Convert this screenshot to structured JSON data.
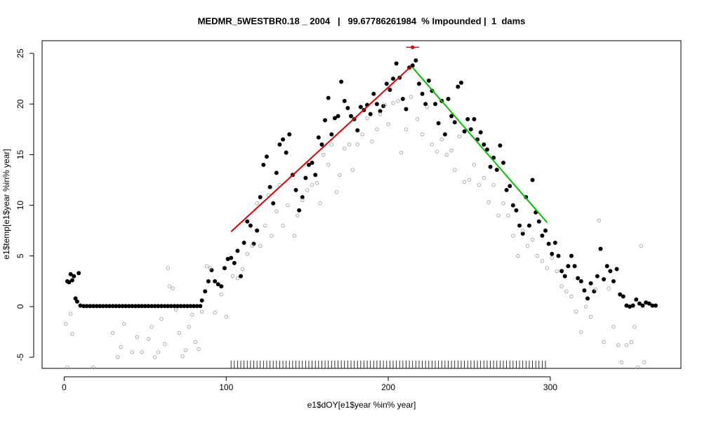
{
  "chart_data": {
    "type": "scatter",
    "title": "MEDMR_5WESTBR0.18 _ 2004   |   99.67786261984  % Impounded |  1  dams",
    "x_label": "e1$dOY[e1$year %in% year]",
    "y_label": "e1$temp[e1$year %in% year]",
    "xlim": [
      -13.6,
      380.6
    ],
    "ylim": [
      -6.1,
      26.25
    ],
    "xticks": [
      0,
      100,
      200,
      300
    ],
    "yticks": [
      -5,
      0,
      5,
      10,
      15,
      20,
      25
    ],
    "series": [
      {
        "color": "#000000",
        "filled": true,
        "x": [
          2,
          3,
          4,
          5,
          6,
          7,
          8,
          9,
          10,
          12,
          14,
          16,
          18,
          20,
          22,
          24,
          26,
          28,
          30,
          32,
          34,
          36,
          38,
          40,
          42,
          44,
          46,
          48,
          50,
          52,
          54,
          56,
          58,
          60,
          62,
          64,
          66,
          68,
          70,
          72,
          74,
          76,
          78,
          80,
          82,
          84,
          85,
          87,
          89,
          91,
          93,
          95,
          97,
          99,
          101,
          103,
          105,
          107,
          109,
          111,
          113,
          115,
          117,
          119,
          121,
          123,
          125,
          127,
          129,
          131,
          133,
          135,
          137,
          139,
          141,
          143,
          145,
          147,
          149,
          151,
          153,
          155,
          157,
          159,
          161,
          163,
          165,
          167,
          169,
          171,
          173,
          175,
          177,
          179,
          181,
          183,
          185,
          187,
          189,
          191,
          193,
          195,
          197,
          199,
          201,
          203,
          205,
          207,
          209,
          211,
          213,
          215,
          217,
          219,
          221,
          223,
          225,
          227,
          229,
          231,
          233,
          235,
          237,
          239,
          241,
          243,
          245,
          247,
          249,
          251,
          253,
          255,
          257,
          259,
          261,
          263,
          265,
          267,
          269,
          271,
          273,
          275,
          277,
          279,
          281,
          283,
          285,
          287,
          289,
          291,
          293,
          295,
          297,
          299,
          301,
          303,
          305,
          307,
          309,
          311,
          313,
          315,
          317,
          319,
          321,
          323,
          325,
          327,
          329,
          331,
          333,
          335,
          337,
          339,
          341,
          343,
          345,
          347,
          349,
          351,
          353,
          355,
          357,
          359,
          361,
          363,
          365
        ],
        "values": [
          2.5,
          2.4,
          3.2,
          2.6,
          3.0,
          0.8,
          0.5,
          3.3,
          0.1,
          0.05,
          0.05,
          0.05,
          0.05,
          0.05,
          0.05,
          0.05,
          0.05,
          0.05,
          0.05,
          0.05,
          0.05,
          0.05,
          0.05,
          0.05,
          0.05,
          0.05,
          0.05,
          0.05,
          0.05,
          0.05,
          0.05,
          0.05,
          0.05,
          0.05,
          0.05,
          0.05,
          0.05,
          0.05,
          0.05,
          0.05,
          0.05,
          0.05,
          0.05,
          0.05,
          0.05,
          0.05,
          0.6,
          1.5,
          2.5,
          3.6,
          2.5,
          2.2,
          2.0,
          3.8,
          4.7,
          4.8,
          4.3,
          5.5,
          3.0,
          6.3,
          8.4,
          8.0,
          6.2,
          7.5,
          10.8,
          14.0,
          14.8,
          11.8,
          10.2,
          13.2,
          16.0,
          16.5,
          15.2,
          17.0,
          13.0,
          11.5,
          9.5,
          10.8,
          12.7,
          14.0,
          14.2,
          13.0,
          16.7,
          16.0,
          18.4,
          20.6,
          17.0,
          18.6,
          18.8,
          22.2,
          20.3,
          19.6,
          18.8,
          18.5,
          17.4,
          19.7,
          19.4,
          19.9,
          19.0,
          21.0,
          20.0,
          19.3,
          19.8,
          22.0,
          21.4,
          22.5,
          24.0,
          22.6,
          20.5,
          19.5,
          23.6,
          23.8,
          24.3,
          22.0,
          21.0,
          20.0,
          22.3,
          21.3,
          20.0,
          18.1,
          20.3,
          17.0,
          20.5,
          18.8,
          18.2,
          21.7,
          22.1,
          17.3,
          18.5,
          17.5,
          18.5,
          16.5,
          17.2,
          16.0,
          15.5,
          13.8,
          14.7,
          13.5,
          15.9,
          14.2,
          11.5,
          11.9,
          10.0,
          9.5,
          8.0,
          7.2,
          10.8,
          8.0,
          12.5,
          9.3,
          8.4,
          7.0,
          7.5,
          6.2,
          5.2,
          6.3,
          5.0,
          3.5,
          3.0,
          4.0,
          5.0,
          4.0,
          2.8,
          2.5,
          1.6,
          0.8,
          2.3,
          1.5,
          3.0,
          5.7,
          2.7,
          4.0,
          3.5,
          2.5,
          3.7,
          1.2,
          1.0,
          0.1,
          0.0,
          0.1,
          0.7,
          0.3,
          0.1,
          0.4,
          0.3,
          0.1,
          0.1
        ]
      },
      {
        "color": "#9a9a9a",
        "filled": false,
        "x": [
          1,
          2,
          4,
          5,
          18,
          30,
          33,
          35,
          37,
          42,
          45,
          48,
          52,
          54,
          56,
          58,
          60,
          62,
          64,
          65,
          67,
          69,
          71,
          73,
          75,
          77,
          79,
          81,
          83,
          85,
          88,
          90,
          93,
          97,
          100,
          104,
          107,
          110,
          113,
          116,
          119,
          121,
          124,
          126,
          128,
          131,
          133,
          135,
          138,
          142,
          144,
          147,
          150,
          153,
          156,
          158,
          160,
          163,
          165,
          168,
          170,
          173,
          176,
          178,
          181,
          184,
          187,
          190,
          193,
          195,
          198,
          200,
          203,
          206,
          208,
          211,
          214,
          218,
          221,
          224,
          227,
          230,
          233,
          236,
          239,
          241,
          244,
          247,
          250,
          253,
          256,
          259,
          262,
          265,
          268,
          271,
          274,
          277,
          280,
          283,
          286,
          289,
          292,
          295,
          298,
          301,
          304,
          307,
          310,
          313,
          316,
          319,
          322,
          325,
          328,
          330,
          333,
          336,
          339,
          342,
          344,
          347,
          350,
          352,
          354,
          356,
          358
        ],
        "values": [
          -1.7,
          -6.0,
          -0.7,
          -2.7,
          -6.0,
          -2.6,
          -5.0,
          -4.0,
          -1.7,
          -4.5,
          -3.0,
          -4.5,
          -3.2,
          -2.0,
          -5.0,
          -4.5,
          -1.2,
          -3.7,
          3.8,
          2.0,
          1.8,
          -0.3,
          -2.6,
          -4.9,
          -4.3,
          -2.0,
          -0.8,
          -3.5,
          -4.2,
          -0.5,
          4.0,
          3.8,
          -0.6,
          1.2,
          -1.0,
          3.0,
          2.8,
          3.7,
          5.2,
          6.0,
          10.2,
          6.0,
          8.0,
          11.0,
          7.0,
          9.4,
          12.0,
          8.0,
          10.0,
          7.0,
          9.0,
          10.5,
          11.5,
          12.0,
          12.2,
          10.2,
          15.0,
          14.0,
          16.0,
          11.3,
          13.0,
          15.6,
          16.0,
          13.5,
          16.0,
          17.0,
          18.6,
          16.3,
          17.5,
          19.0,
          19.9,
          18.0,
          20.1,
          20.3,
          15.2,
          17.5,
          20.7,
          18.5,
          17.0,
          19.7,
          16.0,
          15.3,
          16.5,
          15.0,
          15.4,
          13.5,
          16.8,
          12.3,
          12.5,
          14.0,
          12.0,
          12.7,
          10.3,
          12.0,
          9.0,
          10.2,
          9.0,
          7.0,
          5.0,
          7.5,
          6.0,
          6.6,
          5.0,
          4.5,
          3.8,
          4.8,
          3.5,
          2.0,
          1.5,
          1.0,
          -0.5,
          -2.5,
          0.0,
          -1.0,
          1.7,
          8.5,
          -3.5,
          1.8,
          -2.0,
          -3.8,
          -5.5,
          -3.8,
          -3.5,
          -2.0,
          -6.0,
          6.0,
          -5.5
        ]
      }
    ],
    "lines": [
      {
        "color": "#e00000",
        "x": [
          103,
          214
        ],
        "values": [
          7.4,
          23.7
        ]
      },
      {
        "color": "#00c000",
        "x": [
          215,
          298
        ],
        "values": [
          23.6,
          8.3
        ]
      }
    ],
    "marker": {
      "color": "#e00000",
      "x": 215,
      "value": 25.6,
      "xerr": 4
    },
    "rug": [
      103,
      105,
      107,
      109,
      111,
      113,
      115,
      117,
      119,
      121,
      123,
      125,
      127,
      129,
      131,
      133,
      135,
      137,
      139,
      141,
      143,
      145,
      147,
      149,
      151,
      153,
      155,
      157,
      159,
      161,
      163,
      165,
      167,
      169,
      171,
      173,
      175,
      177,
      179,
      181,
      183,
      185,
      187,
      189,
      191,
      193,
      195,
      197,
      199,
      201,
      203,
      205,
      207,
      209,
      211,
      213,
      215,
      217,
      219,
      221,
      223,
      225,
      227,
      229,
      231,
      233,
      235,
      237,
      239,
      241,
      243,
      245,
      247,
      249,
      251,
      253,
      255,
      257,
      259,
      261,
      263,
      265,
      267,
      269,
      271,
      273,
      275,
      277,
      279,
      281,
      283,
      285,
      287,
      289,
      291,
      293,
      295,
      297
    ]
  }
}
